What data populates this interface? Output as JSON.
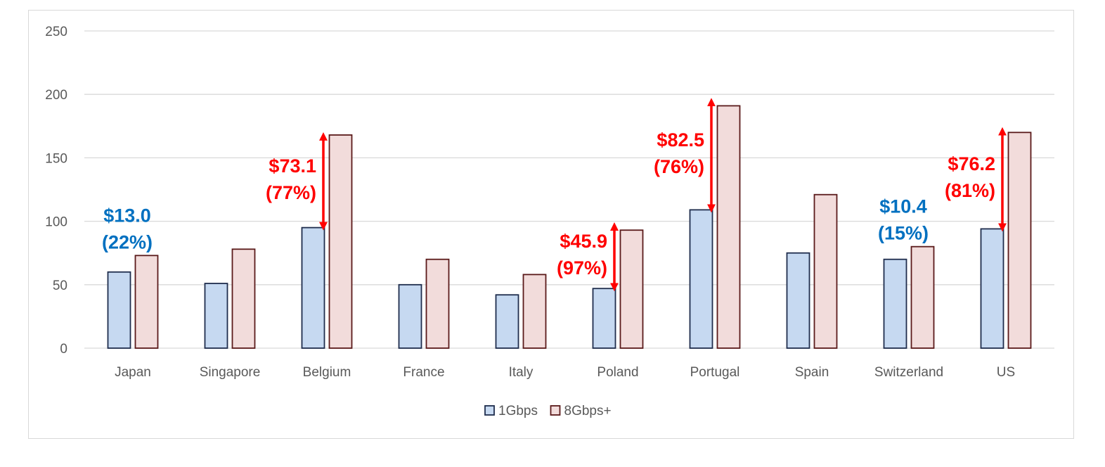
{
  "chart_data": {
    "type": "bar",
    "title": "",
    "xlabel": "",
    "ylabel": "",
    "ylim": [
      0,
      250
    ],
    "yticks": [
      0,
      50,
      100,
      150,
      200,
      250
    ],
    "grid": true,
    "legend_position": "bottom",
    "categories": [
      "Japan",
      "Singapore",
      "Belgium",
      "France",
      "Italy",
      "Poland",
      "Portugal",
      "Spain",
      "Switzerland",
      "US"
    ],
    "series": [
      {
        "name": "1Gbps",
        "color": "#c6d9f1",
        "stroke": "#1f2d4d",
        "values": [
          60,
          51,
          95,
          50,
          42,
          47,
          109,
          75,
          70,
          94
        ]
      },
      {
        "name": "8Gbps+",
        "color": "#f2dcdb",
        "stroke": "#5a1a1a",
        "values": [
          73,
          78,
          168,
          70,
          58,
          93,
          191,
          121,
          80,
          170
        ]
      }
    ],
    "annotations": [
      {
        "category": "Japan",
        "line1": "$13.0",
        "line2": "(22%)",
        "color": "#0070c0",
        "arrow": false
      },
      {
        "category": "Belgium",
        "line1": "$73.1",
        "line2": "(77%)",
        "color": "#ff0000",
        "arrow": true,
        "from": 95,
        "to": 168
      },
      {
        "category": "Poland",
        "line1": "$45.9",
        "line2": "(97%)",
        "color": "#ff0000",
        "arrow": true,
        "from": 47,
        "to": 97
      },
      {
        "category": "Portugal",
        "line1": "$82.5",
        "line2": "(76%)",
        "color": "#ff0000",
        "arrow": true,
        "from": 109,
        "to": 195
      },
      {
        "category": "Switzerland",
        "line1": "$10.4",
        "line2": "(15%)",
        "color": "#0070c0",
        "arrow": false
      },
      {
        "category": "US",
        "line1": "$76.2",
        "line2": "(81%)",
        "color": "#ff0000",
        "arrow": true,
        "from": 94,
        "to": 172
      }
    ]
  }
}
